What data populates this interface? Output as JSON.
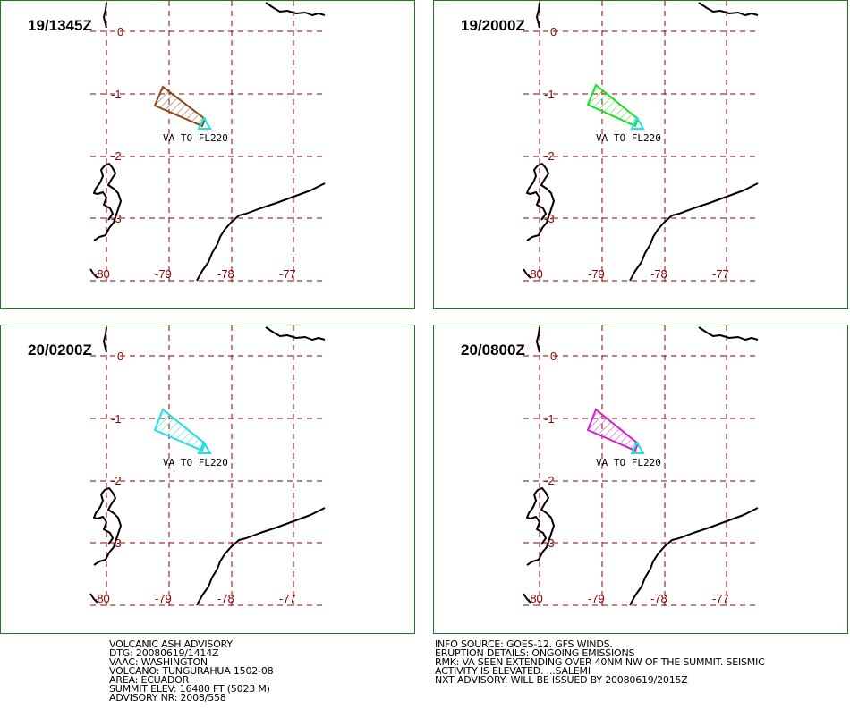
{
  "panels": [
    {
      "time": "19/1345Z",
      "ash_color": "#8b4a1e"
    },
    {
      "time": "19/2000Z",
      "ash_color": "#22dd22"
    },
    {
      "time": "20/0200Z",
      "ash_color": "#22e0e0"
    },
    {
      "time": "20/0800Z",
      "ash_color": "#d020d0"
    }
  ],
  "grid": {
    "lat_labels": [
      "0",
      "-1",
      "-2",
      "-3"
    ],
    "lon_labels": [
      "-80",
      "-79",
      "-78",
      "-77"
    ],
    "line_color": "#8b0000"
  },
  "ash_label": "VA TO FL220",
  "volcano_marker_color": "#22e0e0",
  "advisory_left": [
    "VOLCANIC ASH ADVISORY",
    "DTG: 20080619/1414Z",
    "VAAC: WASHINGTON",
    "VOLCANO: TUNGURAHUA 1502-08",
    "AREA: ECUADOR",
    "SUMMIT ELEV: 16480 FT (5023 M)",
    "ADVISORY NR: 2008/558"
  ],
  "advisory_right": [
    "INFO SOURCE: GOES-12. GFS WINDS.",
    "ERUPTION DETAILS: ONGOING EMISSIONS",
    "RMK: VA SEEN EXTENDING OVER 40NM NW OF THE SUMMIT. SEISMIC",
    "ACTIVITY IS ELEVATED. ...SALEMI",
    "NXT ADVISORY: WILL BE ISSUED BY 20080619/2015Z"
  ]
}
